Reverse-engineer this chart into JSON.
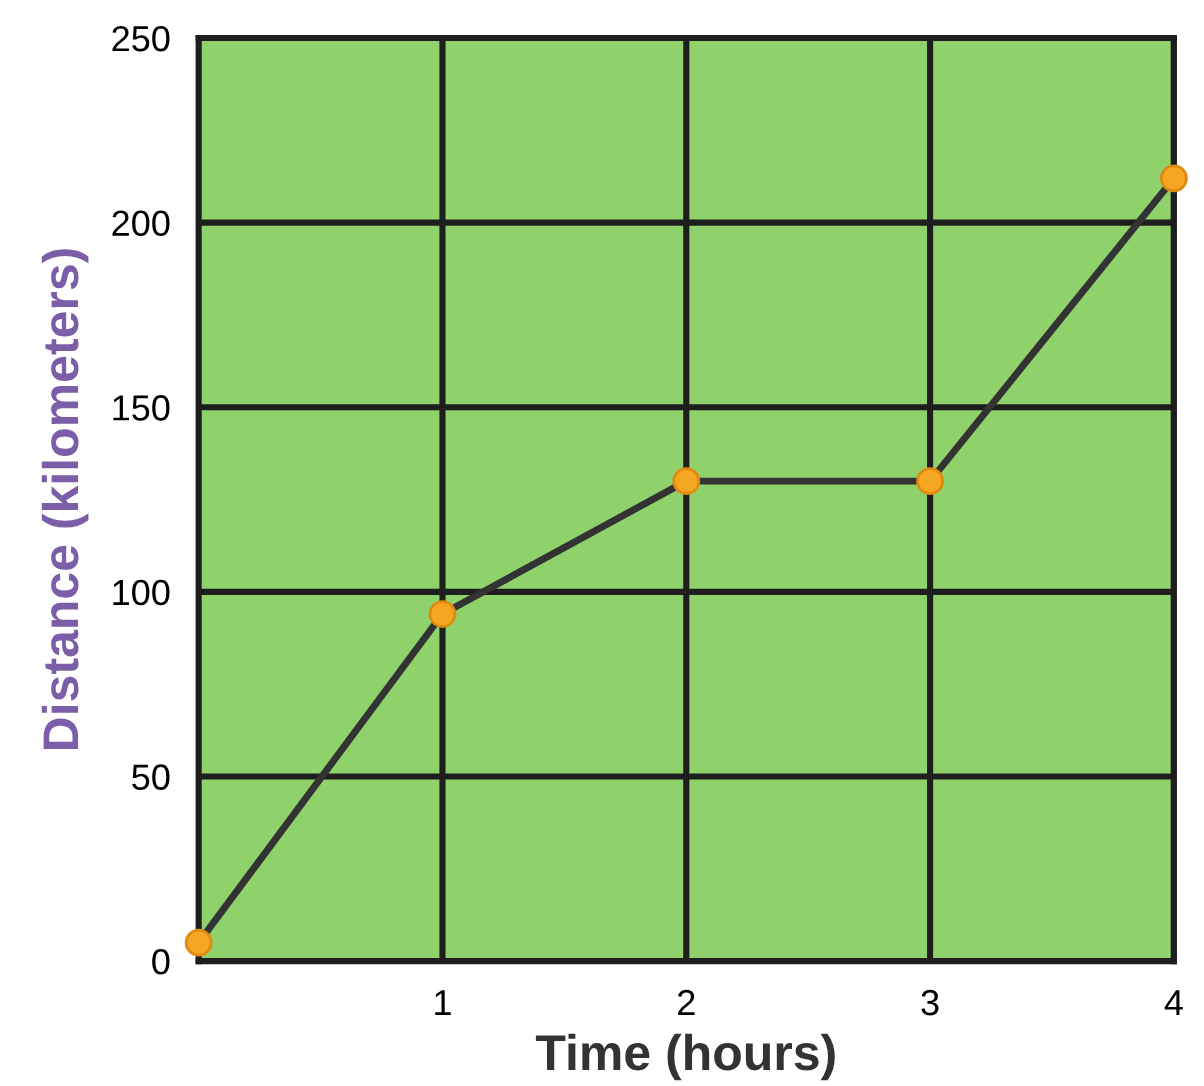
{
  "chart_data": {
    "type": "line",
    "xlabel": "Time (hours)",
    "ylabel": "Distance (kilometers)",
    "x": [
      0,
      1,
      2,
      3,
      4
    ],
    "series": [
      {
        "color": "#333333",
        "values": [
          5,
          94,
          130,
          130,
          212
        ]
      }
    ],
    "xlim": [
      0,
      4
    ],
    "ylim": [
      0,
      250
    ],
    "xticks": [
      1,
      2,
      3,
      4
    ],
    "yticks": [
      0,
      50,
      100,
      150,
      200,
      250
    ],
    "grid": true,
    "marker": "circle",
    "line_style": "solid"
  }
}
